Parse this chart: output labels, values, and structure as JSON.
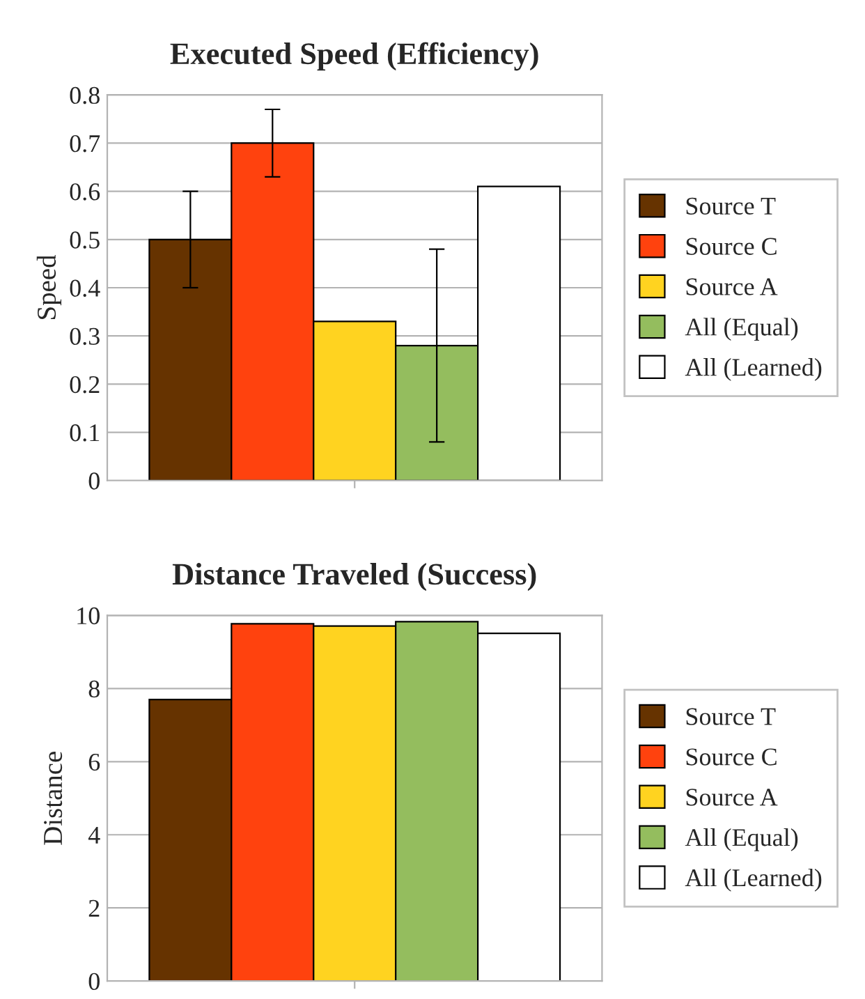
{
  "chart_data": [
    {
      "type": "bar",
      "title": "Executed Speed (Efficiency)",
      "ylabel": "Speed",
      "categories": [
        null
      ],
      "ylim": [
        0,
        0.8
      ],
      "yticks": [
        0,
        0.1,
        0.2,
        0.3,
        0.4,
        0.5,
        0.6,
        0.7,
        0.8
      ],
      "grid": "y",
      "legend": "right",
      "series": [
        {
          "name": "Source T",
          "color": "#663300",
          "values": [
            0.5
          ],
          "errors": [
            0.1
          ]
        },
        {
          "name": "Source C",
          "color": "#ff420e",
          "values": [
            0.7
          ],
          "errors": [
            0.07
          ]
        },
        {
          "name": "Source A",
          "color": "#ffd320",
          "values": [
            0.33
          ]
        },
        {
          "name": "All (Equal)",
          "color": "#94bd5e",
          "values": [
            0.28
          ],
          "errors": [
            0.2
          ]
        },
        {
          "name": "All (Learned)",
          "color": "#ffffff",
          "values": [
            0.61
          ]
        }
      ]
    },
    {
      "type": "bar",
      "title": "Distance Traveled (Success)",
      "ylabel": "Distance",
      "categories": [
        null
      ],
      "ylim": [
        0,
        10
      ],
      "yticks": [
        0,
        2,
        4,
        6,
        8,
        10
      ],
      "grid": "y",
      "legend": "right",
      "series": [
        {
          "name": "Source T",
          "color": "#663300",
          "values": [
            7.7
          ]
        },
        {
          "name": "Source C",
          "color": "#ff420e",
          "values": [
            9.77
          ]
        },
        {
          "name": "Source A",
          "color": "#ffd320",
          "values": [
            9.71
          ]
        },
        {
          "name": "All (Equal)",
          "color": "#94bd5e",
          "values": [
            9.83
          ]
        },
        {
          "name": "All (Learned)",
          "color": "#ffffff",
          "values": [
            9.51
          ]
        }
      ]
    }
  ]
}
